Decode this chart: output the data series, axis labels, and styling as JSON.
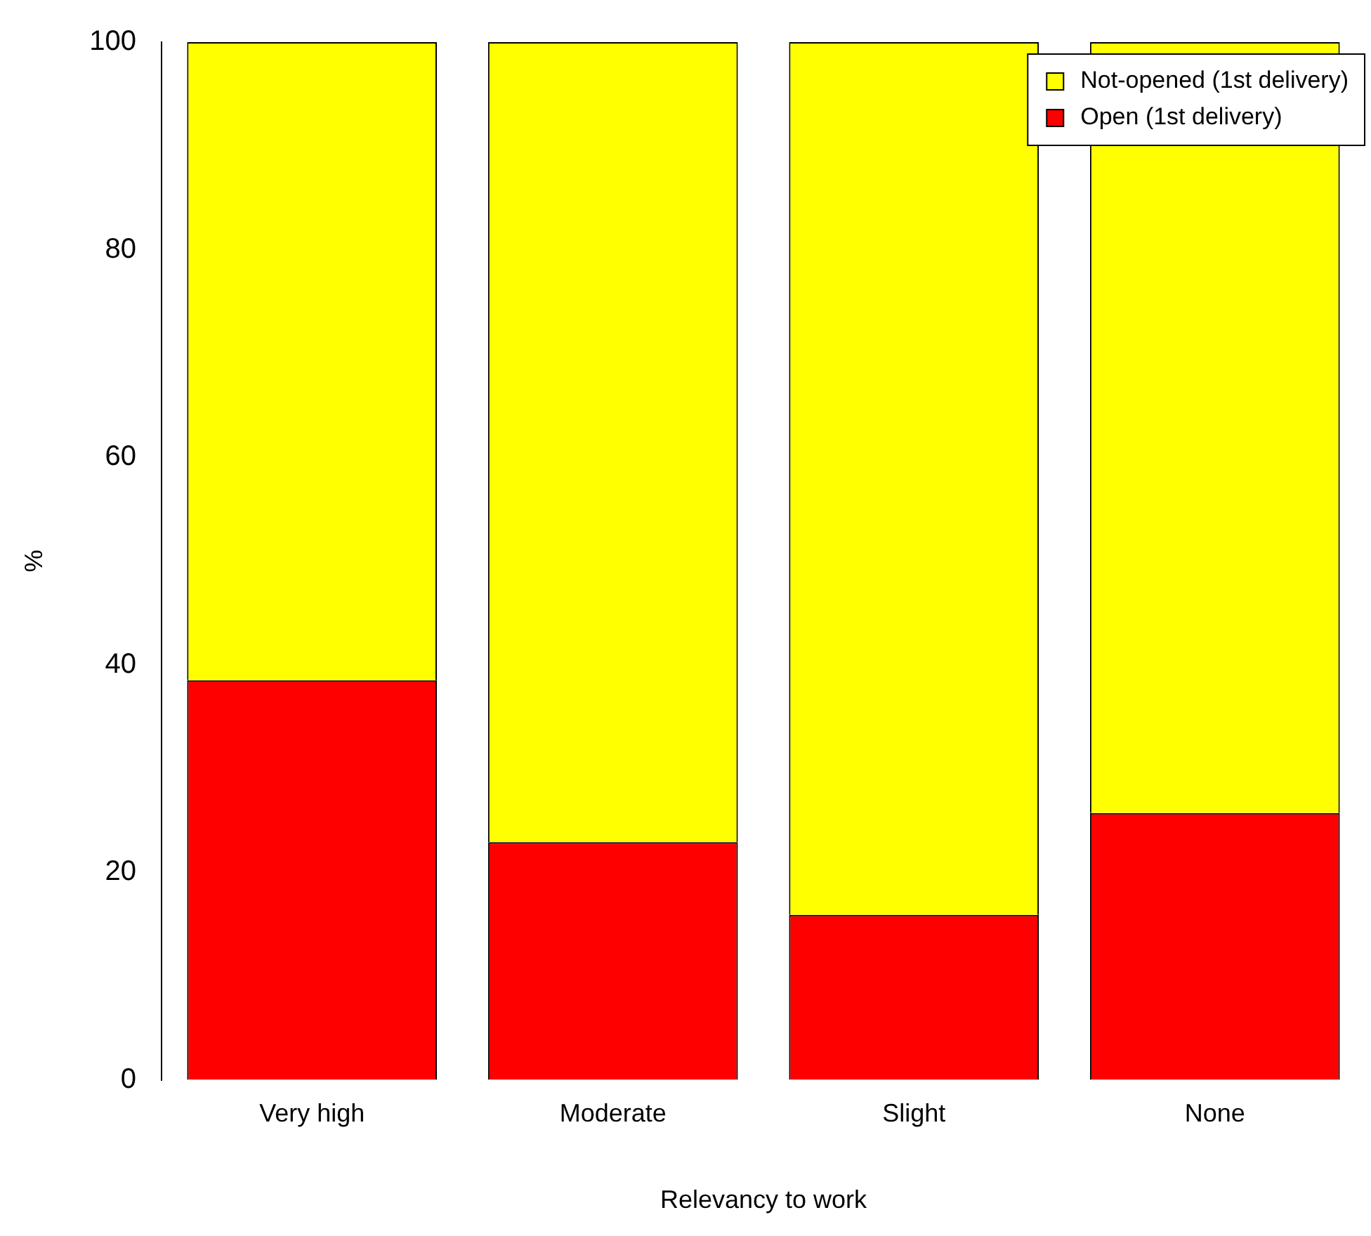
{
  "chart_data": {
    "type": "bar",
    "stacked": true,
    "xlabel": "Relevancy to work",
    "ylabel": "%",
    "categories": [
      "Very high",
      "Moderate",
      "Slight",
      "None"
    ],
    "series": [
      {
        "name": "Open (1st delivery)",
        "color": "#ff0000",
        "values": [
          38.5,
          22.9,
          15.9,
          25.7
        ]
      },
      {
        "name": "Not-opened (1st delivery)",
        "color": "#ffff00",
        "values": [
          61.5,
          77.1,
          84.1,
          74.3
        ]
      }
    ],
    "ylim": [
      0,
      100
    ],
    "yticks": [
      0,
      20,
      40,
      60,
      80,
      100
    ],
    "grid": false,
    "legend": "top right"
  }
}
